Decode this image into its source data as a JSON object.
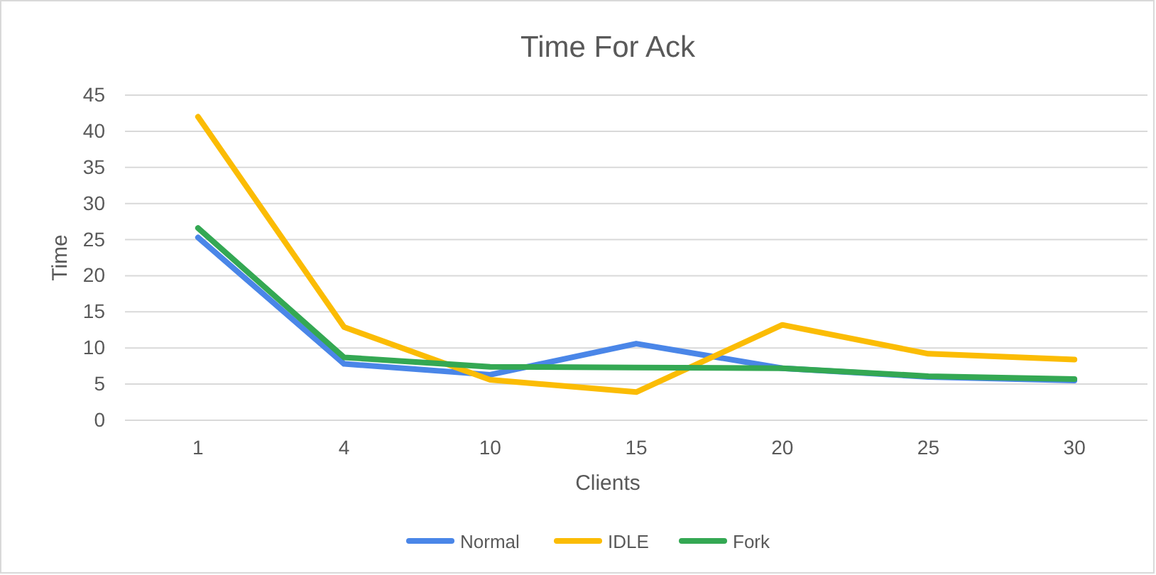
{
  "chart_data": {
    "type": "line",
    "title": "Time For Ack",
    "xlabel": "Clients",
    "ylabel": "Time",
    "categories": [
      "1",
      "4",
      "10",
      "15",
      "20",
      "25",
      "30"
    ],
    "series": [
      {
        "name": "Normal",
        "color": "#4a86e8",
        "values": [
          25.3,
          7.8,
          6.3,
          10.6,
          7.2,
          6.0,
          5.5
        ]
      },
      {
        "name": "IDLE",
        "color": "#fbbc04",
        "values": [
          42,
          12.9,
          5.6,
          3.9,
          13.2,
          9.2,
          8.4
        ]
      },
      {
        "name": "Fork",
        "color": "#34a853",
        "values": [
          26.6,
          8.7,
          7.4,
          7.3,
          7.2,
          6.1,
          5.7
        ]
      }
    ],
    "ylim": [
      0,
      45
    ],
    "yticks": [
      0,
      5,
      10,
      15,
      20,
      25,
      30,
      35,
      40,
      45
    ],
    "grid": "y",
    "legend": "bottom",
    "marker": "none",
    "line_style": "solid"
  }
}
